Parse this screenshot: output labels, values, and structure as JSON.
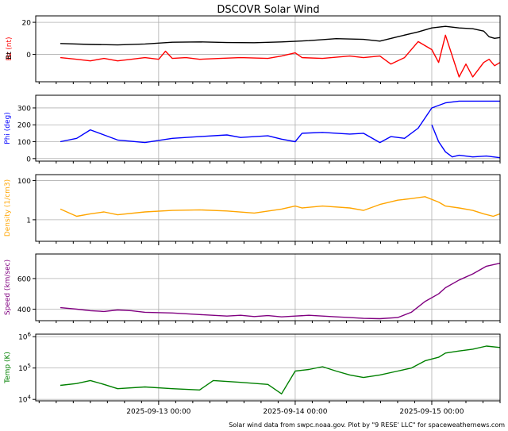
{
  "chart_data": {
    "type": "line",
    "title": "DSCOVR Solar Wind",
    "footer": "Solar wind data from swpc.noaa.gov. Plot by \"9 RESE' LLC\" for spaceweathernews.com",
    "x_tick_labels": [
      "2025-09-13 00:00",
      "2025-09-14 00:00",
      "2025-09-15 00:00"
    ],
    "x_range_days": [
      -0.9,
      2.5
    ],
    "panels": [
      {
        "id": "bz",
        "ylabel": "Bz (nt)",
        "ylabel_secondary": "Bt",
        "ylabel_color": "#ff0000",
        "scale": "linear",
        "ylim": [
          -17,
          24
        ],
        "yticks": [
          {
            "v": 0,
            "label": "0"
          },
          {
            "v": 20,
            "label": "20"
          }
        ],
        "series": [
          {
            "color": "#000000",
            "key": "Bt",
            "points": [
              [
                -0.72,
                6.8
              ],
              [
                -0.5,
                6.2
              ],
              [
                -0.3,
                5.9
              ],
              [
                -0.1,
                6.5
              ],
              [
                0.1,
                7.6
              ],
              [
                0.3,
                7.8
              ],
              [
                0.5,
                7.4
              ],
              [
                0.7,
                7.3
              ],
              [
                0.9,
                7.8
              ],
              [
                1.1,
                8.6
              ],
              [
                1.3,
                9.8
              ],
              [
                1.5,
                9.4
              ],
              [
                1.62,
                8.3
              ],
              [
                1.75,
                11
              ],
              [
                1.9,
                14
              ],
              [
                2.0,
                16.5
              ],
              [
                2.1,
                17.5
              ],
              [
                2.2,
                16.5
              ],
              [
                2.3,
                16
              ],
              [
                2.38,
                14.5
              ],
              [
                2.42,
                11
              ],
              [
                2.46,
                10
              ],
              [
                2.5,
                10.5
              ]
            ]
          },
          {
            "color": "#ff0000",
            "key": "Bz",
            "points": [
              [
                -0.72,
                -2
              ],
              [
                -0.6,
                -3
              ],
              [
                -0.5,
                -4
              ],
              [
                -0.4,
                -2.5
              ],
              [
                -0.3,
                -4
              ],
              [
                -0.2,
                -3
              ],
              [
                -0.1,
                -2
              ],
              [
                0.0,
                -3
              ],
              [
                0.05,
                2
              ],
              [
                0.1,
                -2.5
              ],
              [
                0.2,
                -2
              ],
              [
                0.3,
                -3
              ],
              [
                0.45,
                -2.5
              ],
              [
                0.6,
                -2
              ],
              [
                0.8,
                -2.5
              ],
              [
                0.9,
                -1
              ],
              [
                1.0,
                1
              ],
              [
                1.05,
                -2
              ],
              [
                1.2,
                -2.5
              ],
              [
                1.4,
                -1
              ],
              [
                1.5,
                -2
              ],
              [
                1.62,
                -1
              ],
              [
                1.7,
                -6
              ],
              [
                1.8,
                -2
              ],
              [
                1.9,
                8
              ],
              [
                2.0,
                3
              ],
              [
                2.05,
                -5
              ],
              [
                2.1,
                12
              ],
              [
                2.2,
                -14
              ],
              [
                2.25,
                -6
              ],
              [
                2.3,
                -14
              ],
              [
                2.38,
                -5
              ],
              [
                2.42,
                -3
              ],
              [
                2.46,
                -7
              ],
              [
                2.5,
                -5
              ]
            ]
          }
        ]
      },
      {
        "id": "phi",
        "ylabel": "Phi (deg)",
        "ylabel_color": "#0000ff",
        "scale": "linear",
        "ylim": [
          -15,
          375
        ],
        "yticks": [
          {
            "v": 0,
            "label": "0"
          },
          {
            "v": 100,
            "label": "100"
          },
          {
            "v": 200,
            "label": "200"
          },
          {
            "v": 300,
            "label": "300"
          }
        ],
        "series": [
          {
            "color": "#0000ff",
            "key": "Phi",
            "points": [
              [
                -0.72,
                100
              ],
              [
                -0.6,
                120
              ],
              [
                -0.5,
                170
              ],
              [
                -0.4,
                140
              ],
              [
                -0.3,
                110
              ],
              [
                -0.1,
                95
              ],
              [
                0.1,
                120
              ],
              [
                0.3,
                130
              ],
              [
                0.5,
                140
              ],
              [
                0.6,
                125
              ],
              [
                0.8,
                135
              ],
              [
                0.9,
                115
              ],
              [
                1.0,
                100
              ],
              [
                1.05,
                150
              ],
              [
                1.2,
                155
              ],
              [
                1.4,
                145
              ],
              [
                1.5,
                150
              ],
              [
                1.62,
                95
              ],
              [
                1.7,
                130
              ],
              [
                1.8,
                120
              ],
              [
                1.9,
                180
              ],
              [
                2.0,
                300
              ],
              [
                2.1,
                330
              ],
              [
                2.2,
                340
              ],
              [
                2.3,
                340
              ],
              [
                2.4,
                340
              ],
              [
                2.5,
                340
              ]
            ]
          },
          {
            "color": "#0000ff",
            "key": "Phi_low",
            "points": [
              [
                2.0,
                200
              ],
              [
                2.05,
                100
              ],
              [
                2.1,
                40
              ],
              [
                2.15,
                10
              ],
              [
                2.2,
                20
              ],
              [
                2.3,
                10
              ],
              [
                2.4,
                15
              ],
              [
                2.5,
                5
              ]
            ]
          }
        ]
      },
      {
        "id": "density",
        "ylabel": "Density (1/cm3)",
        "ylabel_color": "#ffa500",
        "scale": "log",
        "ylim": [
          0.08,
          200
        ],
        "yticks": [
          {
            "v": 1,
            "label": "1"
          },
          {
            "v": 100,
            "label": "100"
          }
        ],
        "series": [
          {
            "color": "#ffa500",
            "key": "Density",
            "points": [
              [
                -0.72,
                3.5
              ],
              [
                -0.6,
                1.5
              ],
              [
                -0.5,
                2
              ],
              [
                -0.4,
                2.5
              ],
              [
                -0.3,
                1.8
              ],
              [
                -0.1,
                2.5
              ],
              [
                0.1,
                3
              ],
              [
                0.3,
                3.2
              ],
              [
                0.5,
                2.8
              ],
              [
                0.7,
                2.2
              ],
              [
                0.9,
                3.5
              ],
              [
                1.0,
                5
              ],
              [
                1.05,
                4
              ],
              [
                1.2,
                5
              ],
              [
                1.4,
                4
              ],
              [
                1.5,
                3
              ],
              [
                1.62,
                6
              ],
              [
                1.75,
                10
              ],
              [
                1.85,
                12
              ],
              [
                1.95,
                15
              ],
              [
                2.05,
                8
              ],
              [
                2.1,
                5
              ],
              [
                2.2,
                4
              ],
              [
                2.3,
                3
              ],
              [
                2.38,
                2
              ],
              [
                2.45,
                1.5
              ],
              [
                2.5,
                2
              ]
            ]
          }
        ]
      },
      {
        "id": "speed",
        "ylabel": "Speed (km/sec)",
        "ylabel_color": "#800080",
        "scale": "linear",
        "ylim": [
          325,
          760
        ],
        "yticks": [
          {
            "v": 400,
            "label": "400"
          },
          {
            "v": 600,
            "label": "600"
          }
        ],
        "series": [
          {
            "color": "#800080",
            "key": "Speed",
            "points": [
              [
                -0.72,
                410
              ],
              [
                -0.6,
                400
              ],
              [
                -0.5,
                390
              ],
              [
                -0.4,
                385
              ],
              [
                -0.3,
                395
              ],
              [
                -0.2,
                390
              ],
              [
                -0.1,
                380
              ],
              [
                0.1,
                375
              ],
              [
                0.3,
                365
              ],
              [
                0.5,
                355
              ],
              [
                0.6,
                360
              ],
              [
                0.7,
                352
              ],
              [
                0.8,
                358
              ],
              [
                0.9,
                350
              ],
              [
                1.0,
                355
              ],
              [
                1.1,
                360
              ],
              [
                1.2,
                355
              ],
              [
                1.3,
                350
              ],
              [
                1.4,
                345
              ],
              [
                1.5,
                340
              ],
              [
                1.62,
                338
              ],
              [
                1.75,
                345
              ],
              [
                1.85,
                380
              ],
              [
                1.95,
                450
              ],
              [
                2.05,
                500
              ],
              [
                2.1,
                540
              ],
              [
                2.2,
                590
              ],
              [
                2.3,
                630
              ],
              [
                2.4,
                680
              ],
              [
                2.5,
                700
              ]
            ]
          }
        ]
      },
      {
        "id": "temp",
        "ylabel": "Temp (K)",
        "ylabel_color": "#008000",
        "scale": "log",
        "ylim": [
          9000,
          1200000
        ],
        "yticks": [
          {
            "v": 10000,
            "label": "10^4"
          },
          {
            "v": 100000,
            "label": "10^5"
          },
          {
            "v": 1000000,
            "label": "10^6"
          }
        ],
        "series": [
          {
            "color": "#008000",
            "key": "Temp",
            "points": [
              [
                -0.72,
                28000
              ],
              [
                -0.6,
                32000
              ],
              [
                -0.5,
                40000
              ],
              [
                -0.4,
                30000
              ],
              [
                -0.3,
                22000
              ],
              [
                -0.1,
                25000
              ],
              [
                0.1,
                22000
              ],
              [
                0.3,
                20000
              ],
              [
                0.4,
                40000
              ],
              [
                0.6,
                35000
              ],
              [
                0.8,
                30000
              ],
              [
                0.9,
                15000
              ],
              [
                1.0,
                80000
              ],
              [
                1.1,
                90000
              ],
              [
                1.2,
                110000
              ],
              [
                1.3,
                80000
              ],
              [
                1.4,
                60000
              ],
              [
                1.5,
                50000
              ],
              [
                1.62,
                60000
              ],
              [
                1.75,
                80000
              ],
              [
                1.85,
                100000
              ],
              [
                1.95,
                170000
              ],
              [
                2.05,
                220000
              ],
              [
                2.1,
                300000
              ],
              [
                2.2,
                350000
              ],
              [
                2.3,
                400000
              ],
              [
                2.4,
                500000
              ],
              [
                2.5,
                450000
              ]
            ]
          }
        ]
      }
    ]
  }
}
